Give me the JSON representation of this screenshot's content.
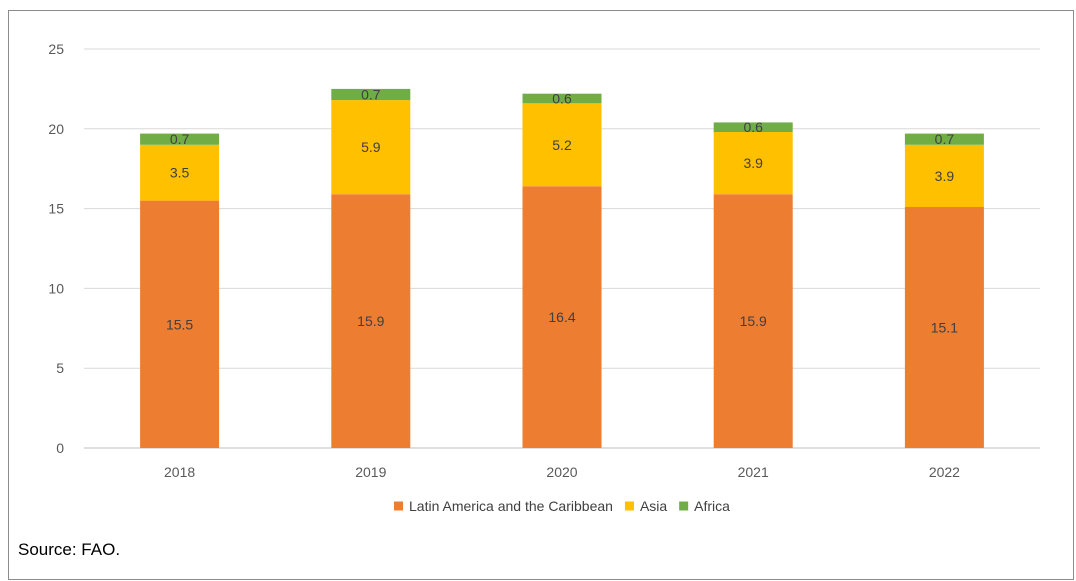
{
  "chart_data": {
    "type": "bar",
    "stacked": true,
    "categories": [
      "2018",
      "2019",
      "2020",
      "2021",
      "2022"
    ],
    "series": [
      {
        "name": "Latin America and the Caribbean",
        "color": "#ED7D31",
        "values": [
          15.5,
          15.9,
          16.4,
          15.9,
          15.1
        ]
      },
      {
        "name": "Asia",
        "color": "#FFC000",
        "values": [
          3.5,
          5.9,
          5.2,
          3.9,
          3.9
        ]
      },
      {
        "name": "Africa",
        "color": "#70AD47",
        "values": [
          0.7,
          0.7,
          0.6,
          0.6,
          0.7
        ]
      }
    ],
    "ylim": [
      0,
      25
    ],
    "yticks": [
      0,
      5,
      10,
      15,
      20,
      25
    ],
    "grid": true,
    "legend_position": "bottom",
    "title": "",
    "xlabel": "",
    "ylabel": ""
  },
  "source_note": "Source: FAO."
}
